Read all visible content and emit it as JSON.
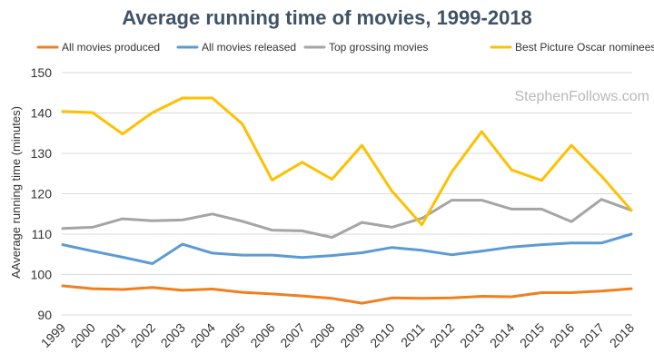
{
  "chart_data": {
    "type": "line",
    "title": "Average running time of movies, 1999-2018",
    "ylabel": "AAverage running time (minutes)",
    "xlabel": "",
    "ylim": [
      90,
      150
    ],
    "yticks": [
      90,
      100,
      110,
      120,
      130,
      140,
      150
    ],
    "grid": true,
    "legend": "top",
    "watermark": "StephenFollows.com",
    "categories": [
      "1999",
      "2000",
      "2001",
      "2002",
      "2003",
      "2004",
      "2005",
      "2006",
      "2007",
      "2008",
      "2009",
      "2010",
      "2011",
      "2012",
      "2013",
      "2014",
      "2015",
      "2016",
      "2017",
      "2018"
    ],
    "series": [
      {
        "name": "All movies produced",
        "color": "#f07f1f",
        "values": [
          97.2,
          96.5,
          96.3,
          96.8,
          96.1,
          96.4,
          95.6,
          95.2,
          94.7,
          94.1,
          92.9,
          94.2,
          94.1,
          94.2,
          94.6,
          94.5,
          95.5,
          95.5,
          95.9,
          96.5
        ]
      },
      {
        "name": "All movies released",
        "color": "#5b9bd5",
        "values": [
          107.4,
          105.8,
          104.3,
          102.7,
          107.5,
          105.3,
          104.8,
          104.8,
          104.2,
          104.7,
          105.4,
          106.7,
          106.0,
          104.9,
          105.8,
          106.8,
          107.4,
          107.8,
          107.8,
          110.0
        ]
      },
      {
        "name": "Top grossing movies",
        "color": "#a5a5a5",
        "values": [
          111.4,
          111.7,
          113.8,
          113.3,
          113.5,
          115.0,
          113.2,
          111.0,
          110.8,
          109.2,
          112.9,
          111.7,
          113.9,
          118.4,
          118.4,
          116.2,
          116.2,
          113.1,
          118.6,
          115.9
        ]
      },
      {
        "name": "Best Picture Oscar nominees",
        "color": "#ffc000",
        "values": [
          140.4,
          140.1,
          134.8,
          140.1,
          143.7,
          143.7,
          137.3,
          123.4,
          127.8,
          123.6,
          132.0,
          120.7,
          112.3,
          125.4,
          135.4,
          125.9,
          123.3,
          132.0,
          124.4,
          115.9
        ]
      }
    ]
  }
}
